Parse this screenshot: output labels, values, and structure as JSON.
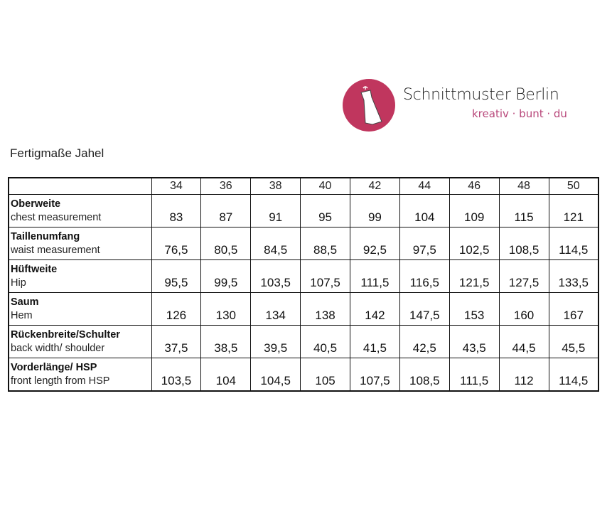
{
  "brand": {
    "name": "Schnittmuster Berlin",
    "tagline": "kreativ · bunt · du",
    "color": "#c0365e"
  },
  "title": "Fertigmaße Jahel",
  "sizes": [
    "34",
    "36",
    "38",
    "40",
    "42",
    "44",
    "46",
    "48",
    "50"
  ],
  "rows": [
    {
      "de": "Oberweite",
      "en": "chest measurement",
      "values": [
        "83",
        "87",
        "91",
        "95",
        "99",
        "104",
        "109",
        "115",
        "121"
      ]
    },
    {
      "de": "Taillenumfang",
      "en": "waist measurement",
      "values": [
        "76,5",
        "80,5",
        "84,5",
        "88,5",
        "92,5",
        "97,5",
        "102,5",
        "108,5",
        "114,5"
      ]
    },
    {
      "de": "Hüftweite",
      "en": "Hip",
      "values": [
        "95,5",
        "99,5",
        "103,5",
        "107,5",
        "111,5",
        "116,5",
        "121,5",
        "127,5",
        "133,5"
      ]
    },
    {
      "de": "Saum",
      "en": "Hem",
      "values": [
        "126",
        "130",
        "134",
        "138",
        "142",
        "147,5",
        "153",
        "160",
        "167"
      ]
    },
    {
      "de": "Rückenbreite/Schulter",
      "en": "back width/ shoulder",
      "values": [
        "37,5",
        "38,5",
        "39,5",
        "40,5",
        "41,5",
        "42,5",
        "43,5",
        "44,5",
        "45,5"
      ]
    },
    {
      "de": "Vorderlänge/ HSP",
      "en": "front length from HSP",
      "values": [
        "103,5",
        "104",
        "104,5",
        "105",
        "107,5",
        "108,5",
        "111,5",
        "112",
        "114,5"
      ]
    }
  ]
}
